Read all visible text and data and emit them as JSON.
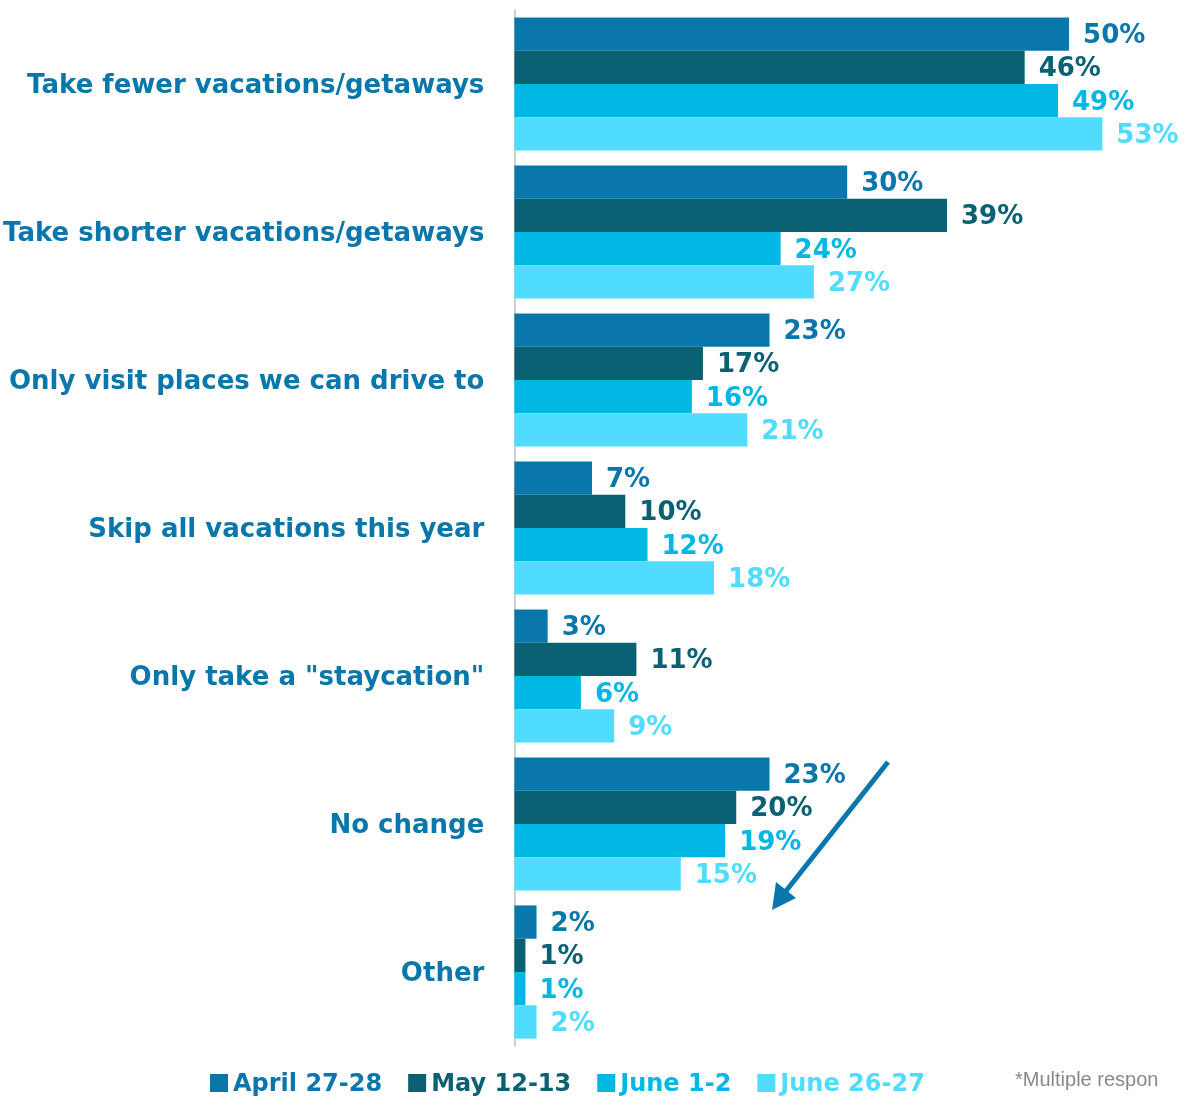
{
  "chart_data": {
    "type": "bar",
    "orientation": "horizontal",
    "legend": "bottom",
    "categories": [
      "Take fewer vacations/getaways",
      "Take shorter vacations/getaways",
      "Only visit places we can drive to",
      "Skip all vacations this year",
      "Only take a \"staycation\"",
      "No change",
      "Other"
    ],
    "series": [
      {
        "name": "April 27-28",
        "color": "#0a77ac",
        "values": [
          50,
          30,
          23,
          7,
          3,
          23,
          2
        ],
        "value_labels": [
          "50%",
          "30%",
          "23%",
          "7%",
          "3%",
          "23%",
          "2%"
        ]
      },
      {
        "name": "May 12-13",
        "color": "#0a6174",
        "values": [
          46,
          39,
          17,
          10,
          11,
          20,
          1
        ],
        "value_labels": [
          "46%",
          "39%",
          "17%",
          "10%",
          "11%",
          "20%",
          "1%"
        ]
      },
      {
        "name": "June 1-2",
        "color": "#00b8e3",
        "values": [
          49,
          24,
          16,
          12,
          6,
          19,
          1
        ],
        "value_labels": [
          "49%",
          "24%",
          "16%",
          "12%",
          "6%",
          "19%",
          "1%"
        ]
      },
      {
        "name": "June 26-27",
        "color": "#50dcff",
        "values": [
          53,
          27,
          21,
          18,
          9,
          15,
          2
        ],
        "value_labels": [
          "53%",
          "27%",
          "21%",
          "18%",
          "9%",
          "15%",
          "2%"
        ]
      }
    ],
    "annotations": [
      "*Multiple respon"
    ]
  }
}
